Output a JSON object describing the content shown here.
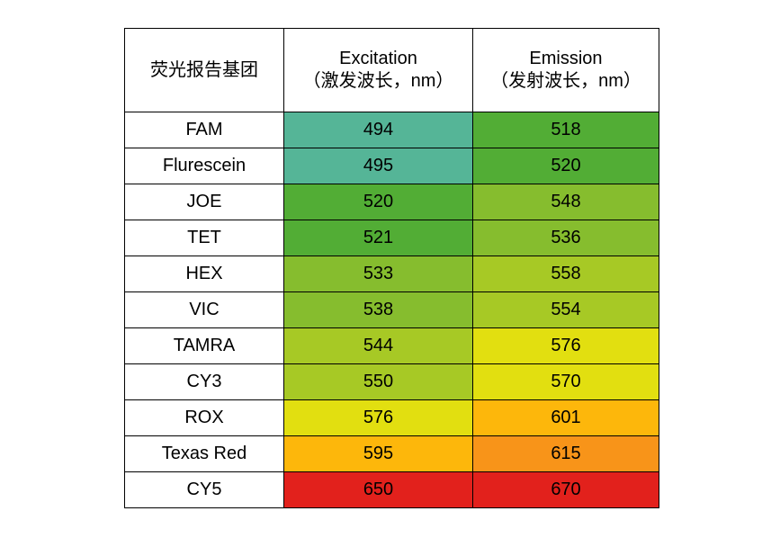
{
  "table": {
    "header": {
      "col1": "荧光报告基团",
      "col2_line1": "Excitation",
      "col2_line2": "（激发波长，nm）",
      "col3_line1": "Emission",
      "col3_line2": "（发射波长，nm）"
    },
    "rows": [
      {
        "name": "FAM",
        "excitation": "494",
        "emission": "518",
        "ex_color": "#55b597",
        "em_color": "#52ad35"
      },
      {
        "name": "Flurescein",
        "excitation": "495",
        "emission": "520",
        "ex_color": "#55b597",
        "em_color": "#52ad35"
      },
      {
        "name": "JOE",
        "excitation": "520",
        "emission": "548",
        "ex_color": "#52ad35",
        "em_color": "#86bd2e"
      },
      {
        "name": "TET",
        "excitation": "521",
        "emission": "536",
        "ex_color": "#52ad35",
        "em_color": "#86bd2e"
      },
      {
        "name": "HEX",
        "excitation": "533",
        "emission": "558",
        "ex_color": "#86bd2e",
        "em_color": "#a7c925"
      },
      {
        "name": "VIC",
        "excitation": "538",
        "emission": "554",
        "ex_color": "#86bd2e",
        "em_color": "#a7c925"
      },
      {
        "name": "TAMRA",
        "excitation": "544",
        "emission": "576",
        "ex_color": "#a7c925",
        "em_color": "#e2df10"
      },
      {
        "name": "CY3",
        "excitation": "550",
        "emission": "570",
        "ex_color": "#a7c925",
        "em_color": "#e2df10"
      },
      {
        "name": "ROX",
        "excitation": "576",
        "emission": "601",
        "ex_color": "#e2df10",
        "em_color": "#fdb70b"
      },
      {
        "name": "Texas Red",
        "excitation": "595",
        "emission": "615",
        "ex_color": "#fdb70b",
        "em_color": "#f89419"
      },
      {
        "name": "CY5",
        "excitation": "650",
        "emission": "670",
        "ex_color": "#e2211c",
        "em_color": "#e2211c"
      }
    ]
  }
}
